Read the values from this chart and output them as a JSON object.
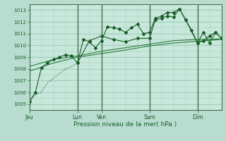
{
  "bg_color": "#b8ddd0",
  "plot_bg": "#c8e8dc",
  "grid_color": "#9cc8b8",
  "line_dark": "#1a5c28",
  "line_med": "#2a7a3a",
  "xlabel": "Pression niveau de la mer( hPa )",
  "ylim": [
    1004.5,
    1013.5
  ],
  "yticks": [
    1005,
    1006,
    1007,
    1008,
    1009,
    1010,
    1011,
    1012,
    1013
  ],
  "day_labels": [
    "Jeu",
    "Lun",
    "Ven",
    "Sam",
    "Dim"
  ],
  "day_positions": [
    0,
    96,
    144,
    240,
    336
  ],
  "total_steps": 384,
  "series1_dotted": {
    "x": [
      0,
      12,
      24,
      36,
      48,
      60,
      72,
      84,
      96
    ],
    "y": [
      1005.2,
      1005.8,
      1006.0,
      1006.8,
      1007.2,
      1007.6,
      1008.0,
      1008.2,
      1008.5
    ]
  },
  "series1_markers": {
    "x": [
      0,
      24,
      48,
      72,
      96,
      120,
      144,
      168,
      192,
      216,
      240,
      264,
      288,
      312,
      336,
      360,
      384
    ],
    "y": [
      1008.1,
      1008.5,
      1009.0,
      1009.8,
      1010.5,
      1010.8,
      1009.8,
      1010.5,
      1011.6,
      1011.5,
      1011.1,
      1012.3,
      1012.5,
      1012.8,
      1010.2,
      1011.1,
      1010.6
    ]
  },
  "series2_main": {
    "x": [
      0,
      12,
      24,
      36,
      48,
      60,
      72,
      84,
      96,
      108,
      120,
      132,
      144,
      156,
      168,
      180,
      192,
      204,
      216,
      228,
      240,
      252,
      264,
      276,
      288,
      300,
      312,
      324,
      336,
      348,
      360,
      372,
      384
    ],
    "y": [
      1005.2,
      1006.0,
      1008.1,
      1008.5,
      1008.8,
      1009.0,
      1009.2,
      1009.1,
      1008.5,
      1010.5,
      1010.3,
      1009.8,
      1010.4,
      1011.6,
      1011.5,
      1011.4,
      1011.1,
      1011.5,
      1011.8,
      1011.0,
      1011.1,
      1012.3,
      1012.5,
      1012.8,
      1012.8,
      1013.1,
      1012.2,
      1011.3,
      1010.2,
      1010.4,
      1010.8,
      1011.1,
      1010.6
    ]
  },
  "series3_zigzag": {
    "x": [
      96,
      120,
      144,
      168,
      192,
      216,
      240,
      252,
      264,
      276,
      288,
      300,
      312,
      336,
      348,
      360,
      372,
      384
    ],
    "y": [
      1008.5,
      1010.4,
      1010.8,
      1010.5,
      1010.3,
      1010.6,
      1010.6,
      1012.2,
      1012.3,
      1012.5,
      1012.4,
      1013.1,
      1012.2,
      1010.2,
      1011.1,
      1010.2,
      1011.1,
      1010.6
    ]
  },
  "series4_smooth1": {
    "x": [
      0,
      48,
      96,
      144,
      192,
      240,
      288,
      336,
      384
    ],
    "y": [
      1008.2,
      1008.8,
      1009.1,
      1009.5,
      1009.8,
      1010.1,
      1010.4,
      1010.5,
      1010.55
    ]
  },
  "series5_smooth2": {
    "x": [
      0,
      48,
      96,
      144,
      192,
      240,
      288,
      336,
      384
    ],
    "y": [
      1007.8,
      1008.5,
      1009.0,
      1009.3,
      1009.6,
      1009.95,
      1010.2,
      1010.35,
      1010.5
    ]
  }
}
